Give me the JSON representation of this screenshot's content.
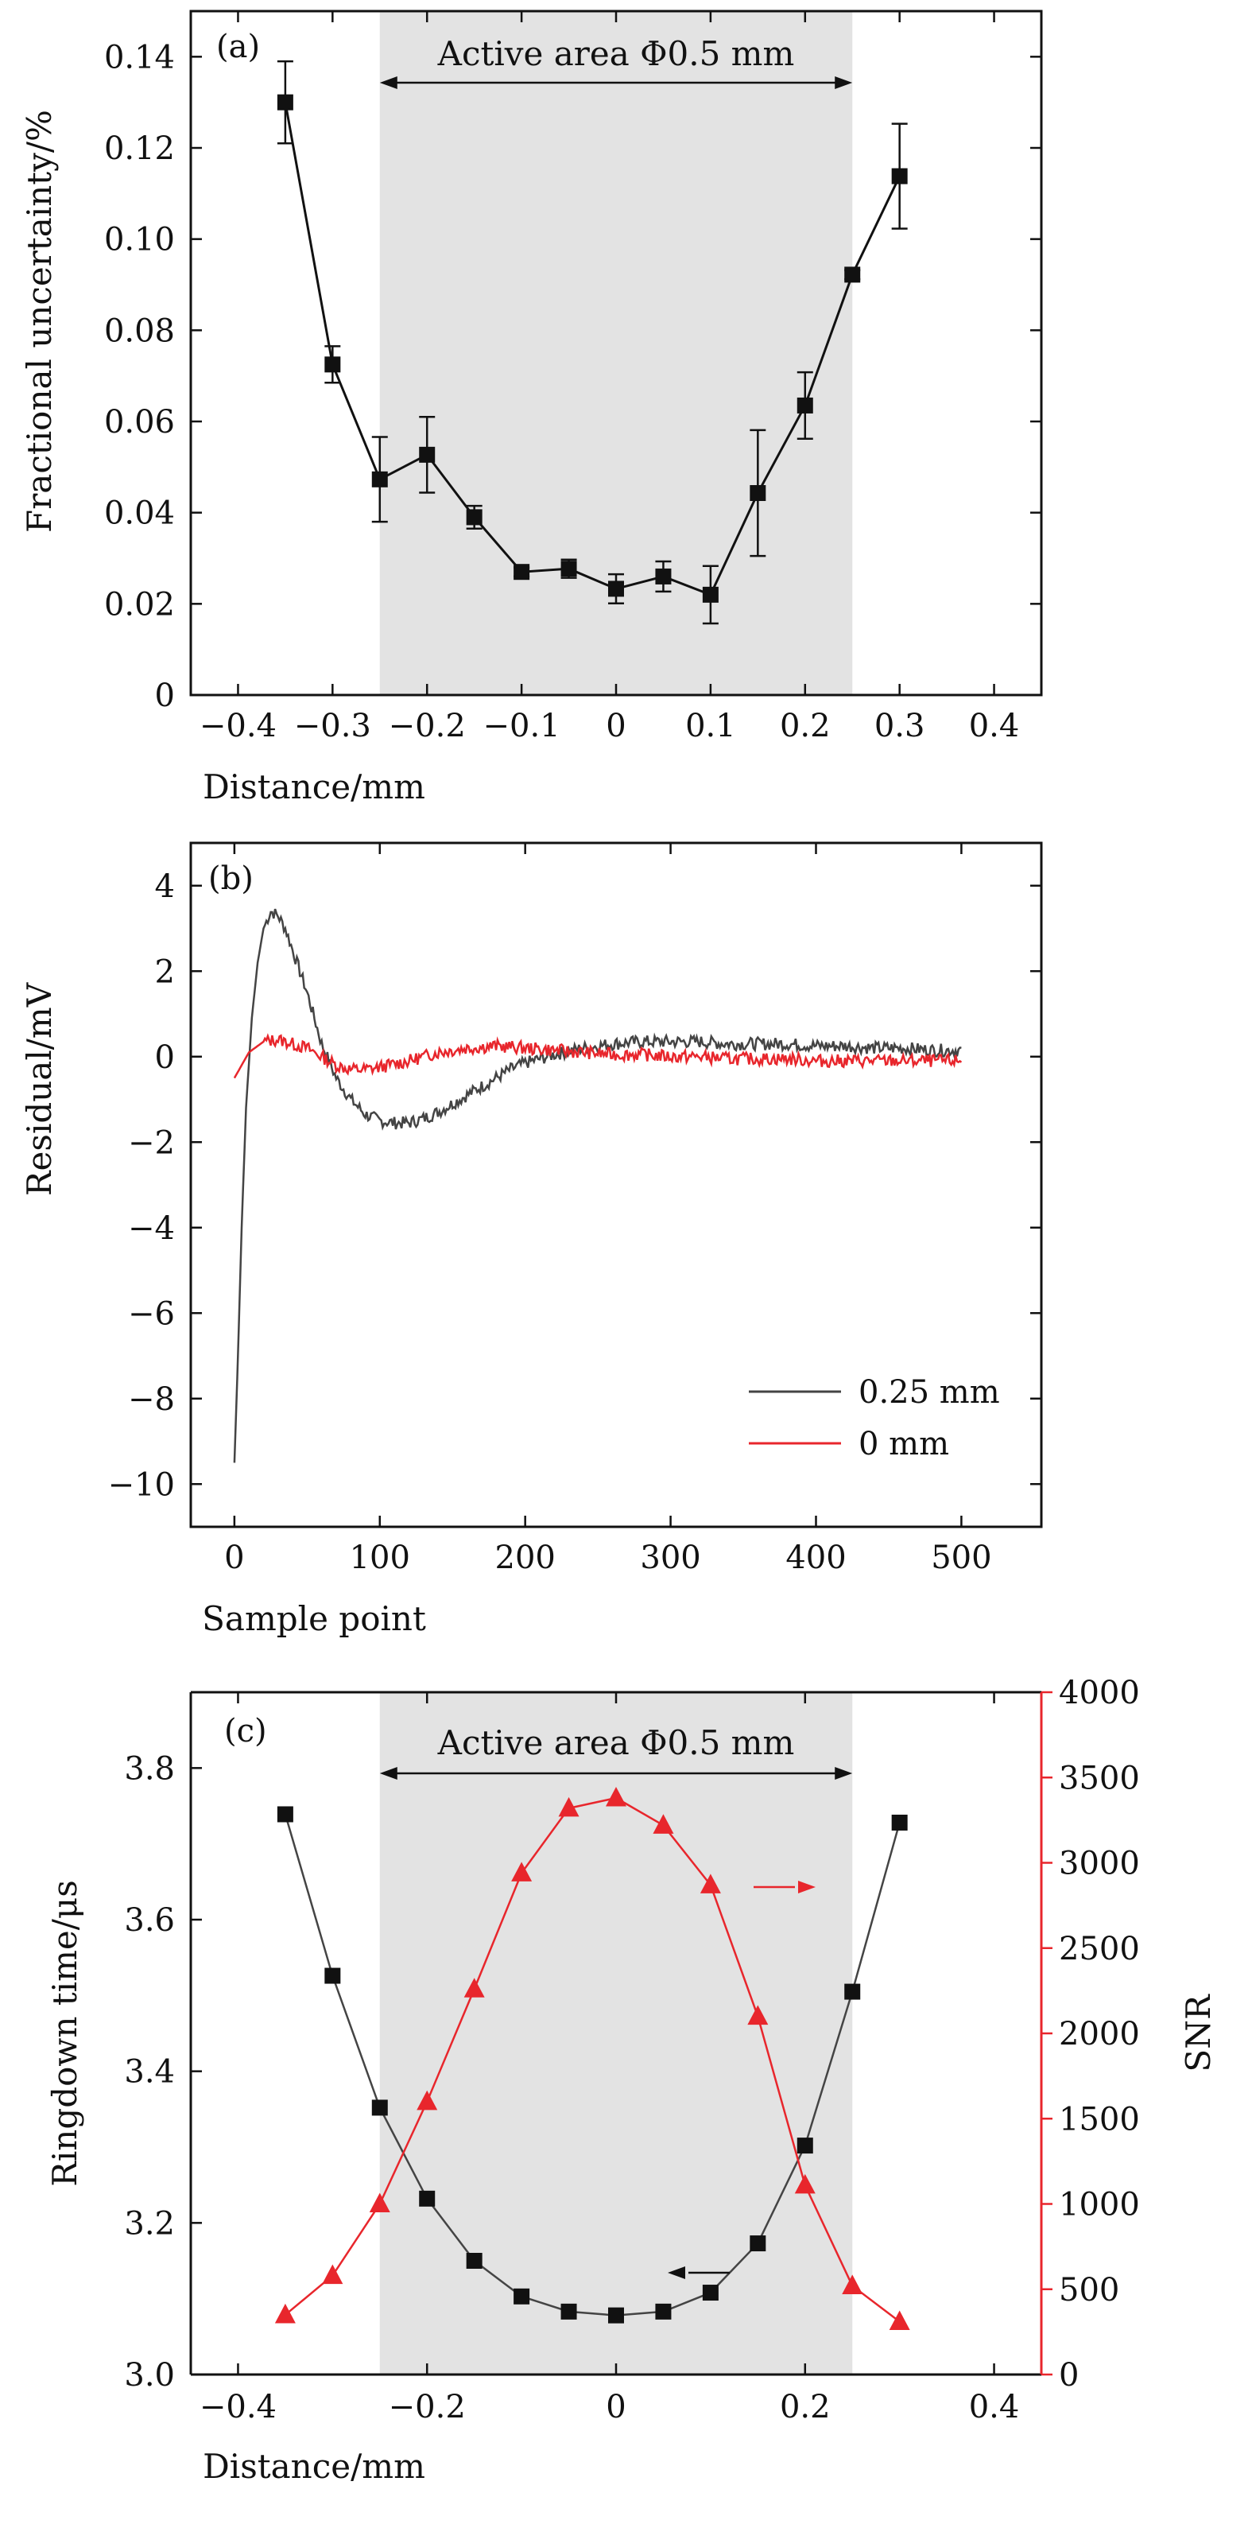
{
  "colors": {
    "black": "#111111",
    "dark_gray": "#444444",
    "red": "#e8262c",
    "shade": "#e3e3e3"
  },
  "chart_data": [
    {
      "panel": "(a)",
      "type": "scatter",
      "title": "",
      "xlabel": "Distance/mm",
      "ylabel": "Fractional uncertainty/%",
      "xlim": [
        -0.45,
        0.45
      ],
      "ylim": [
        0,
        0.15
      ],
      "xticks": [
        "−0.4",
        "−0.3",
        "−0.2",
        "−0.1",
        "0",
        "0.1",
        "0.2",
        "0.3",
        "0.4"
      ],
      "yticks": [
        "0",
        "0.02",
        "0.04",
        "0.06",
        "0.08",
        "0.10",
        "0.12",
        "0.14"
      ],
      "shaded_region": [
        -0.25,
        0.25
      ],
      "annotation": "Active area Φ0.5 mm",
      "series": [
        {
          "x": [
            -0.35,
            -0.3,
            -0.25,
            -0.2,
            -0.15,
            -0.1,
            -0.05,
            0.0,
            0.05,
            0.1,
            0.15,
            0.2,
            0.25,
            0.3
          ],
          "y": [
            0.13,
            0.0725,
            0.0473,
            0.0527,
            0.039,
            0.027,
            0.0277,
            0.0233,
            0.026,
            0.022,
            0.0443,
            0.0635,
            0.0922,
            0.1138
          ],
          "err": [
            0.009,
            0.004,
            0.0093,
            0.0083,
            0.0025,
            0.001,
            0.002,
            0.0032,
            0.0033,
            0.0063,
            0.0138,
            0.0073,
            0.001,
            0.0115
          ]
        }
      ]
    },
    {
      "panel": "(b)",
      "type": "line",
      "title": "",
      "xlabel": "Sample point",
      "ylabel": "Residual/mV",
      "xlim": [
        -30,
        555
      ],
      "ylim": [
        -11,
        5
      ],
      "xticks": [
        "0",
        "100",
        "200",
        "300",
        "400",
        "500"
      ],
      "yticks": [
        "−10",
        "−8",
        "−6",
        "−4",
        "−2",
        "0",
        "2",
        "4"
      ],
      "legend_position": "bottom-right",
      "series": [
        {
          "name": "0.25 mm",
          "x": [
            0,
            2,
            5,
            8,
            12,
            16,
            20,
            25,
            30,
            35,
            40,
            45,
            50,
            55,
            60,
            70,
            80,
            90,
            100,
            110,
            120,
            130,
            140,
            150,
            160,
            170,
            180,
            190,
            200,
            220,
            240,
            260,
            280,
            300,
            320,
            340,
            360,
            380,
            400,
            420,
            440,
            460,
            480,
            500
          ],
          "y": [
            -9.5,
            -7.5,
            -4.0,
            -1.2,
            0.9,
            2.2,
            3.0,
            3.4,
            3.3,
            3.0,
            2.5,
            2.0,
            1.5,
            0.9,
            0.3,
            -0.5,
            -1.0,
            -1.35,
            -1.5,
            -1.55,
            -1.55,
            -1.45,
            -1.3,
            -1.1,
            -0.9,
            -0.7,
            -0.5,
            -0.3,
            -0.15,
            0.05,
            0.2,
            0.3,
            0.35,
            0.35,
            0.35,
            0.3,
            0.3,
            0.3,
            0.25,
            0.25,
            0.2,
            0.2,
            0.15,
            0.15
          ]
        },
        {
          "name": "0 mm",
          "x": [
            0,
            10,
            20,
            30,
            40,
            50,
            60,
            70,
            80,
            90,
            100,
            120,
            140,
            160,
            180,
            200,
            220,
            240,
            260,
            280,
            300,
            320,
            340,
            360,
            380,
            400,
            420,
            440,
            460,
            480,
            500
          ],
          "y": [
            -0.5,
            0.1,
            0.35,
            0.4,
            0.3,
            0.2,
            0.0,
            -0.2,
            -0.3,
            -0.3,
            -0.25,
            -0.1,
            0.1,
            0.2,
            0.25,
            0.2,
            0.15,
            0.1,
            0.05,
            0.05,
            0.0,
            0.0,
            -0.05,
            -0.05,
            -0.05,
            -0.1,
            -0.1,
            -0.1,
            -0.1,
            -0.1,
            -0.1
          ]
        }
      ]
    },
    {
      "panel": "(c)",
      "type": "scatter",
      "title": "",
      "xlabel": "Distance/mm",
      "ylabel": "Ringdown time/μs",
      "y2label": "SNR",
      "xlim": [
        -0.45,
        0.45
      ],
      "ylim": [
        3.0,
        3.9
      ],
      "y2lim": [
        0,
        4000
      ],
      "xticks": [
        "−0.4",
        "−0.2",
        "0",
        "0.2",
        "0.4"
      ],
      "yticks": [
        "3.0",
        "3.2",
        "3.4",
        "3.6",
        "3.8"
      ],
      "y2ticks": [
        "0",
        "500",
        "1000",
        "1500",
        "2000",
        "2500",
        "3000",
        "3500",
        "4000"
      ],
      "shaded_region": [
        -0.25,
        0.25
      ],
      "annotation": "Active area Φ0.5 mm",
      "series": [
        {
          "axis": "left",
          "x": [
            -0.35,
            -0.3,
            -0.25,
            -0.2,
            -0.15,
            -0.1,
            -0.05,
            0.0,
            0.05,
            0.1,
            0.15,
            0.2,
            0.25,
            0.3
          ],
          "y": [
            3.739,
            3.526,
            3.352,
            3.232,
            3.15,
            3.103,
            3.083,
            3.078,
            3.083,
            3.108,
            3.173,
            3.302,
            3.505,
            3.728
          ]
        },
        {
          "axis": "right",
          "x": [
            -0.35,
            -0.3,
            -0.25,
            -0.2,
            -0.15,
            -0.1,
            -0.05,
            0.0,
            0.05,
            0.1,
            0.15,
            0.2,
            0.25,
            0.3
          ],
          "y": [
            350,
            580,
            1000,
            1600,
            2260,
            2940,
            3320,
            3380,
            3220,
            2870,
            2100,
            1110,
            520,
            310
          ]
        }
      ]
    }
  ]
}
